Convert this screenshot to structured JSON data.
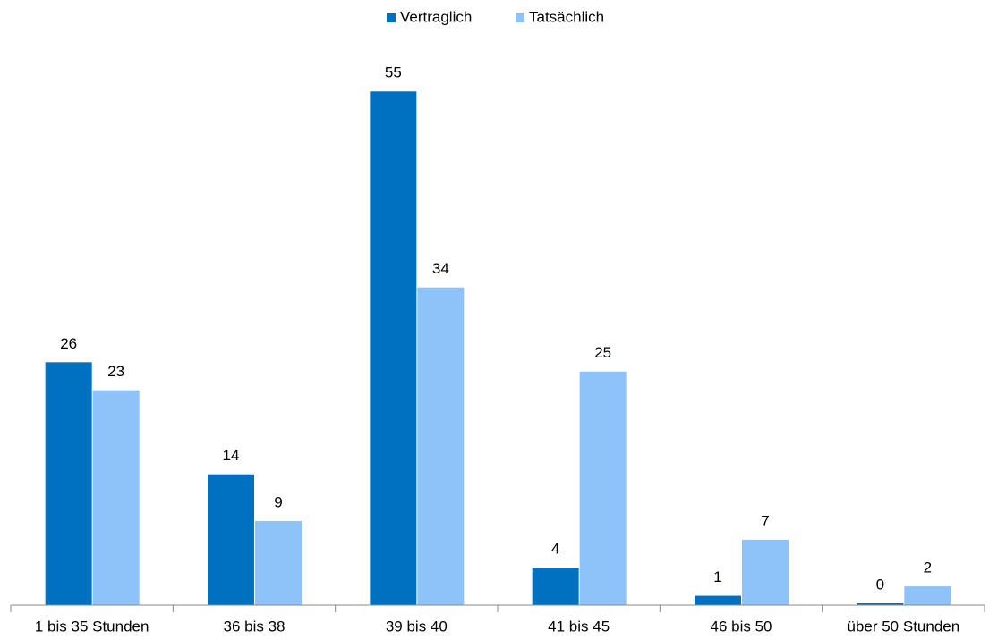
{
  "chart_data": {
    "type": "bar",
    "categories": [
      "1 bis 35 Stunden",
      "36 bis 38",
      "39 bis 40",
      "41 bis 45",
      "46 bis 50",
      "über 50 Stunden"
    ],
    "series": [
      {
        "name": "Vertraglich",
        "color": "#0070c0",
        "values": [
          26,
          14,
          55,
          4,
          1,
          0
        ]
      },
      {
        "name": "Tatsächlich",
        "color": "#8dc3f8",
        "values": [
          23,
          9,
          34,
          25,
          7,
          2
        ]
      }
    ],
    "legend": "top"
  }
}
